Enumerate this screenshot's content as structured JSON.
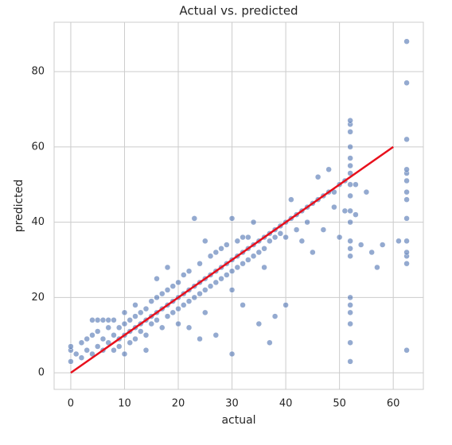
{
  "chart_data": {
    "type": "scatter",
    "title": "Actual vs. predicted",
    "x_label": "actual",
    "y_label": "predicted",
    "xlim": [
      -3.1,
      65.6
    ],
    "ylim": [
      -4.4,
      93.1
    ],
    "xticks": [
      0,
      10,
      20,
      30,
      40,
      50,
      60
    ],
    "yticks": [
      0,
      20,
      40,
      60,
      80
    ],
    "grid": true,
    "series": [
      {
        "color": "#4c72b0",
        "x": [
          0,
          0,
          0,
          1,
          2,
          2,
          3,
          3,
          4,
          4,
          4,
          5,
          5,
          5,
          6,
          6,
          6,
          7,
          7,
          7,
          8,
          8,
          8,
          9,
          9,
          9,
          10,
          10,
          10,
          10,
          11,
          11,
          11,
          12,
          12,
          12,
          12,
          13,
          13,
          13,
          14,
          14,
          14,
          14,
          15,
          15,
          15,
          16,
          16,
          16,
          16,
          17,
          17,
          17,
          18,
          18,
          18,
          18,
          19,
          19,
          19,
          20,
          20,
          20,
          20,
          21,
          21,
          21,
          22,
          22,
          22,
          22,
          23,
          23,
          23,
          24,
          24,
          24,
          24,
          25,
          25,
          25,
          25,
          26,
          26,
          26,
          27,
          27,
          27,
          27,
          28,
          28,
          28,
          29,
          29,
          29,
          30,
          30,
          30,
          30,
          30,
          31,
          31,
          31,
          32,
          32,
          32,
          32,
          33,
          33,
          33,
          34,
          34,
          34,
          35,
          35,
          35,
          36,
          36,
          36,
          37,
          37,
          37,
          38,
          38,
          38,
          39,
          39,
          40,
          40,
          40,
          41,
          41,
          42,
          42,
          43,
          43,
          44,
          44,
          45,
          45,
          46,
          46,
          47,
          47,
          48,
          48,
          49,
          49,
          50,
          50,
          51,
          51,
          52,
          52,
          52,
          52,
          52,
          52,
          52,
          52,
          52,
          52,
          52,
          52,
          52,
          52,
          52,
          52,
          52,
          52,
          52,
          52,
          53,
          53,
          54,
          55,
          56,
          57,
          58,
          62.5,
          62.5,
          62.5,
          62.5,
          62.5,
          62.5,
          62.5,
          62.5,
          62.5,
          62.5,
          62.5,
          62.5,
          62.5,
          62.5,
          61
        ],
        "y": [
          3,
          6,
          7,
          5,
          8,
          4,
          6,
          9,
          5,
          14,
          10,
          7,
          11,
          14,
          6,
          9,
          14,
          8,
          12,
          14,
          6,
          10,
          14,
          9,
          12,
          7,
          10,
          13,
          5,
          16,
          11,
          14,
          8,
          12,
          15,
          9,
          18,
          13,
          11,
          16,
          14,
          17,
          10,
          6,
          15,
          13,
          19,
          16,
          14,
          20,
          25,
          17,
          12,
          21,
          18,
          15,
          22,
          28,
          19,
          16,
          23,
          20,
          17,
          24,
          13,
          21,
          18,
          26,
          22,
          19,
          27,
          12,
          23,
          41,
          20,
          24,
          21,
          29,
          9,
          25,
          22,
          35,
          16,
          26,
          23,
          31,
          27,
          24,
          32,
          10,
          28,
          25,
          33,
          29,
          26,
          34,
          30,
          27,
          41,
          5,
          22,
          31,
          28,
          35,
          32,
          29,
          36,
          18,
          33,
          30,
          36,
          34,
          31,
          40,
          35,
          32,
          13,
          36,
          33,
          28,
          37,
          35,
          8,
          38,
          36,
          15,
          39,
          37,
          40,
          36,
          18,
          41,
          46,
          42,
          38,
          43,
          35,
          44,
          40,
          45,
          32,
          46,
          52,
          47,
          38,
          48,
          54,
          48,
          44,
          50,
          36,
          51,
          43,
          3,
          8,
          13,
          16,
          18,
          20,
          31,
          33,
          35,
          40,
          43,
          47,
          50,
          53,
          55,
          57,
          60,
          64,
          66,
          67,
          42,
          50,
          34,
          48,
          32,
          28,
          34,
          6,
          29,
          31,
          32,
          35,
          41,
          46,
          48,
          51,
          53,
          54,
          62,
          77,
          88,
          35
        ]
      },
      {
        "color": "#e8101c",
        "x": [
          0,
          60
        ],
        "y": [
          0,
          60
        ]
      }
    ]
  }
}
